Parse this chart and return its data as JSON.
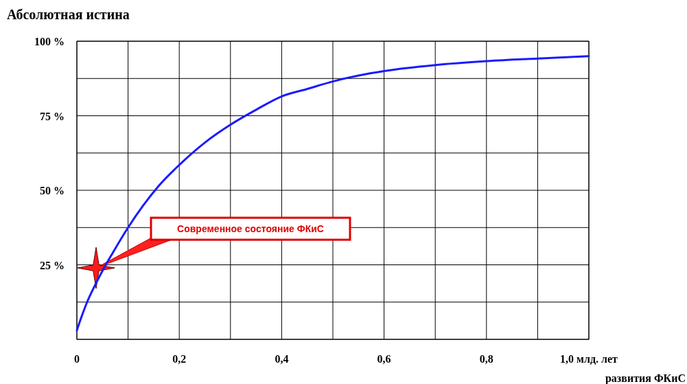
{
  "chart_data": {
    "type": "line",
    "title": "Абсолютная истина",
    "xlabel": "развития ФКиС",
    "x": [
      0,
      0.01,
      0.02,
      0.035,
      0.05,
      0.07,
      0.1,
      0.13,
      0.16,
      0.2,
      0.25,
      0.3,
      0.35,
      0.4,
      0.45,
      0.5,
      0.55,
      0.6,
      0.7,
      0.8,
      0.9,
      1.0
    ],
    "series": [
      {
        "color": "#1a1aff",
        "values": [
          3,
          8,
          12.5,
          18,
          23,
          29,
          37.5,
          45,
          51.5,
          58.5,
          66,
          72,
          77,
          81.5,
          84,
          86.5,
          88.5,
          90,
          92,
          93.3,
          94.2,
          95
        ]
      }
    ],
    "xlim": [
      0,
      1
    ],
    "xticks": [
      0,
      {
        "value": 0.1,
        "label": null
      },
      {
        "value": 0.2,
        "label": "0,2"
      },
      {
        "value": 0.3,
        "label": null
      },
      {
        "value": 0.4,
        "label": "0,4"
      },
      {
        "value": 0.5,
        "label": null
      },
      {
        "value": 0.6,
        "label": "0,6"
      },
      {
        "value": 0.7,
        "label": null
      },
      {
        "value": 0.8,
        "label": "0,8"
      },
      {
        "value": 0.9,
        "label": null
      },
      {
        "value": 1,
        "label": "1,0 млд. лет"
      }
    ],
    "ylim": [
      0,
      100
    ],
    "yticks": [
      {
        "value": 0,
        "label": null
      },
      {
        "value": 12.5,
        "label": null
      },
      {
        "value": 25,
        "label": "25 %"
      },
      {
        "value": 37.5,
        "label": null
      },
      {
        "value": 50,
        "label": "50 %"
      },
      {
        "value": 62.5,
        "label": null
      },
      {
        "value": 75,
        "label": "75 %"
      },
      {
        "value": 87.5,
        "label": null
      },
      {
        "value": 100,
        "label": "100 %"
      }
    ],
    "grid": true,
    "line_style": "solid",
    "marker": "none",
    "annotations": [
      "Современное состояние ФКиС"
    ]
  }
}
